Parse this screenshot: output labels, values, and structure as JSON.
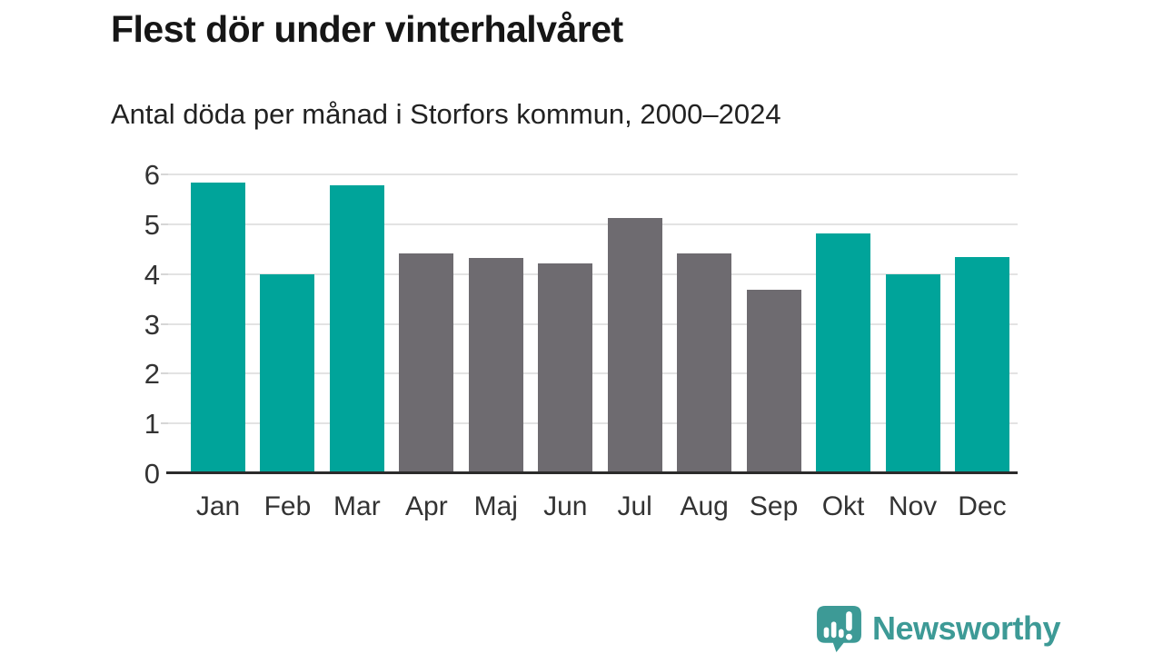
{
  "header": {
    "title": "Flest dör under vinterhalvåret",
    "subtitle": "Antal döda per månad i Storfors kommun, 2000–2024"
  },
  "chart_data": {
    "type": "bar",
    "title": "Flest dör under vinterhalvåret",
    "subtitle": "Antal döda per månad i Storfors kommun, 2000–2024",
    "categories": [
      "Jan",
      "Feb",
      "Mar",
      "Apr",
      "Maj",
      "Jun",
      "Jul",
      "Aug",
      "Sep",
      "Okt",
      "Nov",
      "Dec"
    ],
    "values": [
      5.83,
      4.0,
      5.78,
      4.42,
      4.33,
      4.22,
      5.12,
      4.42,
      3.68,
      4.81,
      4.0,
      4.34
    ],
    "bar_colors": [
      "highlight",
      "highlight",
      "highlight",
      "default",
      "default",
      "default",
      "default",
      "default",
      "default",
      "highlight",
      "highlight",
      "highlight"
    ],
    "colors": {
      "highlight": "#00a49a",
      "default": "#6e6b70"
    },
    "xlabel": "",
    "ylabel": "",
    "ylim": [
      0,
      6
    ],
    "yticks": [
      0,
      1,
      2,
      3,
      4,
      5,
      6
    ],
    "grid": true,
    "legend": false,
    "highlight_meaning": "winter half-year months (Okt–Mar) in teal, summer months (Apr–Sep) in gray"
  },
  "footer": {
    "brand": "Newsworthy",
    "brand_color": "#3d9a96"
  }
}
